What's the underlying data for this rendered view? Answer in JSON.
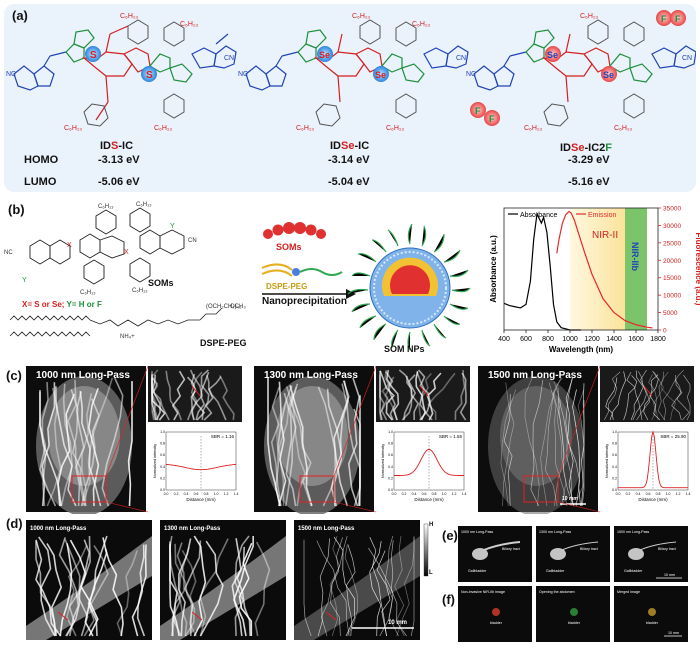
{
  "panels": {
    "a": {
      "label": "(a)",
      "atoms": {
        "s": "S",
        "se": "Se",
        "f": "F",
        "c6h13": "C₆H₁₃",
        "o": "O",
        "cn": "CN",
        "nc": "NC"
      },
      "molecules": [
        {
          "name_pre": "ID",
          "name_hl": "S",
          "name_post": "-IC",
          "homo": "-3.13 eV",
          "lumo": "-5.06 eV"
        },
        {
          "name_pre": "ID",
          "name_hl": "Se",
          "name_post": "-IC",
          "homo": "-3.14 eV",
          "lumo": "-5.04 eV"
        },
        {
          "name_pre": "ID",
          "name_hl": "Se",
          "name_post": "-IC2",
          "name_hl2": "F",
          "homo": "-3.29 eV",
          "lumo": "-5.16 eV"
        }
      ],
      "homo_label": "HOMO",
      "lumo_label": "LUMO"
    },
    "b": {
      "label": "(b)",
      "x_def": "X= S or Se;",
      "y_def": "Y= H or F",
      "soms_label": "SOMs",
      "dspe_label": "DSPE-PEG",
      "dspe_label2": "DSPE-PEG",
      "soms_legend": "SOMs",
      "process": "Nanoprecipitation",
      "product": "SOM NPs",
      "formula_och3": "OCH₃",
      "formula_nh4": "NH₄+",
      "formula_repeat": "(OCH₂CH₂)₄₅",
      "atom_x": "X",
      "atom_y": "Y"
    },
    "c": {
      "label": "(c)",
      "images": [
        {
          "filter": "1000 nm Long-Pass",
          "sbr": "SBR = 1.16"
        },
        {
          "filter": "1300 nm Long-Pass",
          "sbr": "SBR = 1.55"
        },
        {
          "filter": "1500 nm Long-Pass",
          "sbr": "SBR = 25.90"
        }
      ],
      "profile_xlabel": "Distance (mm)",
      "profile_ylabel": "Normalized intensity",
      "profile_ticks": [
        "0.0",
        "0.2",
        "0.4",
        "0.6",
        "0.8",
        "1.0",
        "1.2",
        "1.4"
      ],
      "profile_yticks": [
        "0.0",
        "0.2",
        "0.4",
        "0.6",
        "0.8",
        "1.0"
      ],
      "scale": "10 mm"
    },
    "d": {
      "label": "(d)",
      "images": [
        "1000 nm Long-Pass",
        "1300 nm Long-Pass",
        "1500 nm Long-Pass"
      ],
      "scale": "10 mm",
      "bar_high": "H",
      "bar_low": "L"
    },
    "e": {
      "label": "(e)",
      "images": [
        "1000 nm Long-Pass",
        "1300 nm Long-Pass",
        "1500 nm Long-Pass"
      ],
      "gallbladder": "Gallbladder",
      "biliary": "Biliary tract",
      "scale": "10 mm"
    },
    "f": {
      "label": "(f)",
      "images": [
        "Non-invasive NIR-IIb image",
        "Opening the abdomen",
        "Merged image"
      ],
      "bladder": "bladder",
      "scale": "10 mm"
    }
  },
  "chart_data": {
    "type": "line",
    "xlabel": "Wavelength (nm)",
    "ylabel_left": "Absorbance (a.u.)",
    "ylabel_right": "Fluorescence (a.u.)",
    "xlim": [
      400,
      1800
    ],
    "xticks": [
      400,
      600,
      800,
      1000,
      1200,
      1400,
      1600,
      1800
    ],
    "ylim_right": [
      0,
      35000
    ],
    "yticks_right": [
      0,
      5000,
      10000,
      15000,
      20000,
      25000,
      30000,
      35000
    ],
    "regions": [
      {
        "label": "NIR-II",
        "from": 1000,
        "to": 1700
      },
      {
        "label": "NIR-IIb",
        "from": 1500,
        "to": 1700
      }
    ],
    "legend": [
      "Absorbance",
      "Emission"
    ],
    "legend_position": "top",
    "series": [
      {
        "name": "Absorbance",
        "axis": "left",
        "color": "#000000",
        "x": [
          400,
          450,
          500,
          550,
          600,
          640,
          670,
          700,
          720,
          740,
          760,
          790,
          820,
          850,
          880,
          920,
          960,
          1000,
          1100
        ],
        "y": [
          0.23,
          0.21,
          0.2,
          0.19,
          0.22,
          0.42,
          0.78,
          1.0,
          0.96,
          0.92,
          0.97,
          0.84,
          0.55,
          0.22,
          0.07,
          0.02,
          0.01,
          0.0,
          0.0
        ]
      },
      {
        "name": "Emission",
        "axis": "right",
        "color": "#e8282b",
        "x": [
          880,
          900,
          930,
          960,
          990,
          1010,
          1040,
          1080,
          1130,
          1200,
          1300,
          1400,
          1500,
          1600,
          1700,
          1750
        ],
        "y": [
          22000,
          26000,
          30500,
          33000,
          34000,
          33600,
          31500,
          27500,
          22500,
          16000,
          9000,
          5000,
          2700,
          1500,
          800,
          600
        ]
      }
    ]
  }
}
